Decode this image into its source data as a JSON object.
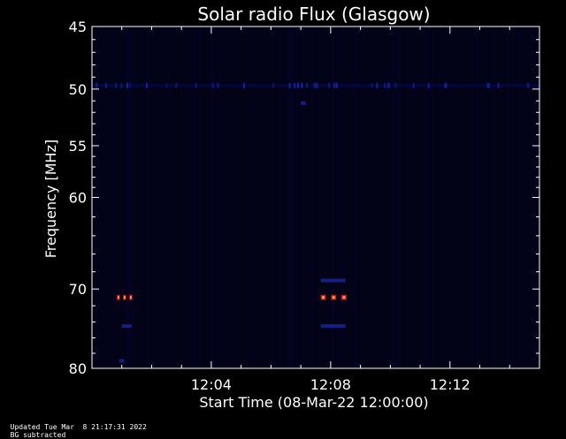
{
  "chart_data": {
    "type": "heatmap",
    "title": "Solar radio Flux (Glasgow)",
    "ylabel": "Frequency [MHz]",
    "xlabel": "Start Time (08-Mar-22 12:00:00)",
    "y_scale": "log",
    "ylim": [
      80,
      45
    ],
    "y_ticks": [
      45,
      50,
      55,
      60,
      70,
      80
    ],
    "xlim": [
      "12:00",
      "12:15"
    ],
    "x_ticks": [
      "12:04",
      "12:08",
      "12:12"
    ],
    "colors": {
      "background": "#000000",
      "plot_field": "#030318",
      "low": "#0a0a60",
      "mid": "#c01818",
      "high": "#ffb040"
    },
    "features": [
      {
        "label": "interference band",
        "freq": 49.7,
        "t_start": "12:00",
        "t_end": "12:15",
        "intensity": "low"
      },
      {
        "label": "burst",
        "freq": 71.0,
        "t_start": "12:00:50",
        "t_end": "12:01:20",
        "intensity": "high"
      },
      {
        "label": "burst",
        "freq": 71.0,
        "t_start": "12:07:40",
        "t_end": "12:08:30",
        "intensity": "high"
      },
      {
        "label": "faint echo",
        "freq": 69.0,
        "t_start": "12:07:40",
        "t_end": "12:08:30",
        "intensity": "low"
      },
      {
        "label": "faint echo",
        "freq": 74.5,
        "t_start": "12:07:40",
        "t_end": "12:08:30",
        "intensity": "low"
      },
      {
        "label": "faint echo",
        "freq": 74.5,
        "t_start": "12:01:00",
        "t_end": "12:01:20",
        "intensity": "low"
      },
      {
        "label": "faint spot",
        "freq": 51.2,
        "t_start": "12:07:00",
        "t_end": "12:07:10",
        "intensity": "low"
      },
      {
        "label": "faint spot",
        "freq": 79.0,
        "t_start": "12:00:55",
        "t_end": "12:01:05",
        "intensity": "low"
      }
    ]
  },
  "footer": {
    "updated": "Updated Tue Mar  8 21:17:31 2022",
    "note": "BG subtracted"
  }
}
